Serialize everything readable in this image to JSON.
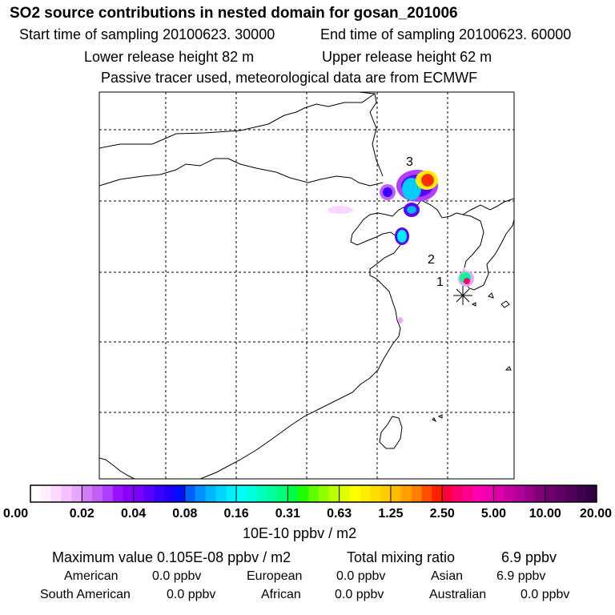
{
  "header": {
    "title": "SO2 source contributions in nested domain for gosan_201006",
    "start_label": "Start time of sampling 20100623. 30000",
    "end_label": "End time of sampling 20100623. 60000",
    "lower_label": "Lower release height   82 m",
    "upper_label": "Upper release height   62 m",
    "tracer_label": "Passive tracer used, meteorological data are from ECMWF"
  },
  "chart_data": {
    "type": "heatmap",
    "title": "SO2 source contributions in nested domain for gosan_201006",
    "colorbar": {
      "ticks": [
        "0.00",
        "0.02",
        "0.04",
        "0.08",
        "0.16",
        "0.31",
        "0.63",
        "1.25",
        "2.50",
        "5.00",
        "10.00",
        "20.00"
      ],
      "unit_label": "10E-10 ppbv / m2",
      "colors": [
        [
          "#ffffff",
          "#ffeeff",
          "#ffd9ff",
          "#f5c0ff",
          "#e8a8ff"
        ],
        [
          "#d07cf5",
          "#c060f5",
          "#b040ff",
          "#9a10ff",
          "#8800ff"
        ],
        [
          "#7a00ff",
          "#5a00ff",
          "#3a00ff",
          "#2000ff",
          "#0010ff"
        ],
        [
          "#0060ff",
          "#0090ff",
          "#00b4ff",
          "#00d4ff",
          "#00eeff"
        ],
        [
          "#00ffff",
          "#00ffdd",
          "#00ffbb",
          "#00ff99",
          "#00ff77"
        ],
        [
          "#00ff40",
          "#20ff00",
          "#60ff00",
          "#90ff00",
          "#bbff00"
        ],
        [
          "#ddff00",
          "#ffff00",
          "#ffee00",
          "#ffdd00",
          "#ffcc00"
        ],
        [
          "#ffbb00",
          "#ffa000",
          "#ff8000",
          "#ff5000",
          "#ff2000"
        ],
        [
          "#ff0040",
          "#ff0070",
          "#ff0090",
          "#ff00b0",
          "#ee00b0"
        ],
        [
          "#dd00aa",
          "#c800a0",
          "#b00098",
          "#980088",
          "#800078"
        ],
        [
          "#700070",
          "#600066",
          "#50005c",
          "#400050",
          "#300040"
        ]
      ]
    },
    "markers": [
      {
        "label": "1"
      },
      {
        "label": "2"
      },
      {
        "label": "3"
      }
    ],
    "receptor_icon": "asterisk-icon"
  },
  "footer": {
    "max_label": "Maximum value  0.105E-08 ppbv / m2",
    "total_label": "Total mixing ratio",
    "total_value": "6.9 ppbv",
    "regions": [
      {
        "name": "American",
        "value": "0.0 ppbv"
      },
      {
        "name": "European",
        "value": "0.0 ppbv"
      },
      {
        "name": "Asian",
        "value": "6.9 ppbv"
      },
      {
        "name": "South American",
        "value": "0.0 ppbv"
      },
      {
        "name": "African",
        "value": "0.0 ppbv"
      },
      {
        "name": "Australian",
        "value": "0.0 ppbv"
      }
    ]
  }
}
